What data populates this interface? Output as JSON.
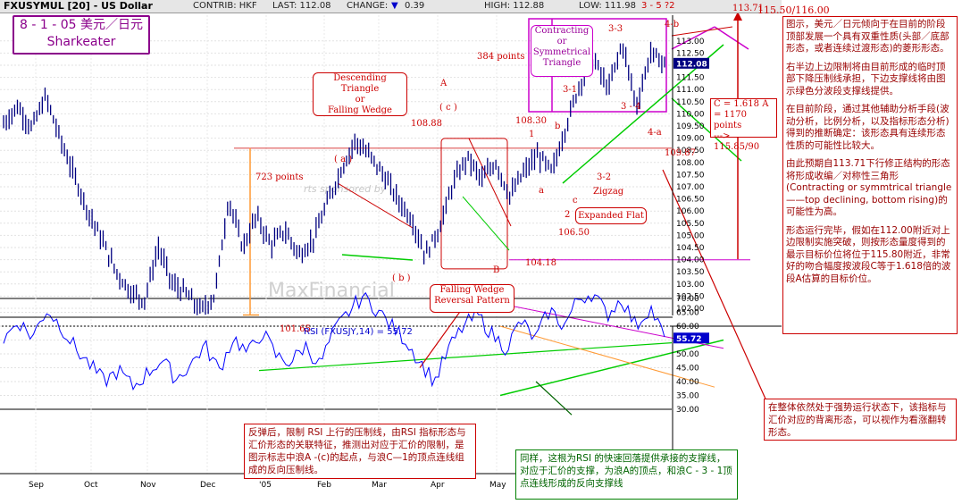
{
  "header": {
    "symbol": "FXUSYMUL [20] - US Dollar",
    "contrib": "CONTRIB: HKF",
    "last": "LAST: 112.08",
    "change": "CHANGE:",
    "change_icon": "down-triangle-icon",
    "change_value": "0.39",
    "high": "HIGH: 112.88",
    "low": "LOW: 111.98",
    "wave": "3 - 5 ?2"
  },
  "title_box": {
    "line1": "8 - 1 - 05 美元／日元",
    "line2": "Sharkeater"
  },
  "watermark": {
    "line1": "rts sponsored by",
    "line2": "MaxFinancial"
  },
  "price_labels": {
    "p11371": "113.71",
    "p11550": "115.50/116.00",
    "p10888": "108.88",
    "p10830": "108.30",
    "p10987": "109.87",
    "p10650": "106.50",
    "p10418": "104.18",
    "p10165": "101.65",
    "pts723": "723 points",
    "pts384": "384 points"
  },
  "wave_labels": {
    "A": "A",
    "c_paren": "( c )",
    "a_paren": "( a )",
    "b_paren": "( b )",
    "B": "B",
    "one": "1",
    "a": "a",
    "b": "b",
    "c": "c",
    "two": "2",
    "w31": "3-1",
    "w33": "3-3",
    "w34": "3 - 4",
    "w32": "3-2",
    "w4a": "4-a",
    "w4b": "4-b",
    "zigzag": "Zigzag"
  },
  "annotations": {
    "desc_triangle": [
      "Descending Triangle",
      "or",
      "Falling Wedge"
    ],
    "falling_wedge_rev": [
      "Falling Wedge",
      "Reversal Pattern"
    ],
    "contracting": [
      "Contracting",
      "or",
      "Symmetrical",
      "Triangle"
    ],
    "expanded_flat": "Expanded Flat",
    "c_calc": [
      "C = 1.618 A",
      "= 1170 points",
      "---> 115.85/90"
    ]
  },
  "price_axis": {
    "ticks": [
      "113.00",
      "112.50",
      "112.00",
      "111.50",
      "111.00",
      "110.50",
      "110.00",
      "109.50",
      "109.00",
      "108.50",
      "108.00",
      "107.50",
      "107.00",
      "106.50",
      "106.00",
      "105.50",
      "105.00",
      "104.50",
      "104.00",
      "103.50",
      "103.00",
      "102.50",
      "102.00"
    ],
    "last_tag": "112.08"
  },
  "rsi": {
    "label": "RSI (FXUSJY,14) = 55.72",
    "ticks": [
      "70.00",
      "65.00",
      "60.00",
      "55.00",
      "50.00",
      "45.00",
      "40.00",
      "35.00",
      "30.00"
    ],
    "last_tag": "55.72"
  },
  "x_axis": {
    "months": [
      "Sep",
      "Oct",
      "Nov",
      "Dec",
      "'05",
      "Feb",
      "Mar",
      "Apr",
      "May"
    ]
  },
  "notes": {
    "right": [
      "图示，美元／日元倾向于在目前的阶段顶部发展一个具有双重性质(头部／底部形态，或者连续过渡形态)的菱形形态。",
      "右半边上边限制将由目前形成的临时顶部下降压制线承担，下边支撑线将由图示绿色分波段支撑线提供。",
      "在目前阶段，通过其他辅助分析手段(波动分析，比例分析，以及指标形态分析)得到的推断确定：该形态具有连续形态性质的可能性比较大。",
      "由此预期自113.71下行修正结构的形态将形成收编／对称性三角形(Contracting or symmtrical triangle——top declining, bottom rising)的可能性为高。",
      "形态运行完毕，假如在112.00附近对上边限制实施突破，则按形态量度得到的最示目标价位将位于115.80附近，非常好的吻合幅度按波段C等于1.618倍的波段A估算的目标价位。"
    ],
    "bottom_right": "在整体依然处于强势运行状态下，该指标与汇价对应的背离形态，可以视作为看涨翻转形态。",
    "bottom_left": "反弹后，限制 RSI 上行的压制线，由RSI 指标形态与汇价形态的关联特征，推测出对应于汇价的限制，是图示标志中浪A -(c)的起点，与浪C—1的顶点连线组成的反向压制线。",
    "bottom_green": "同样，这根为RSI 的快速回落提供承接的支撑线，对应于汇价的支撑，为浪A的顶点，和浪C - 3 - 1顶点连线形成的反向支撑线"
  },
  "colors": {
    "price": "#000080",
    "rsi": "#0000ff",
    "red": "#cc0000",
    "magenta": "#cc00cc",
    "green": "#00cc00",
    "orange": "#ff9933",
    "text_red": "#990000"
  },
  "chart_data": [
    {
      "type": "line",
      "title": "FXUSYMUL [20] - US Dollar",
      "ylim": [
        102,
        113
      ],
      "x": [
        "Sep",
        "Oct",
        "Nov",
        "Dec",
        "'05",
        "Feb",
        "Mar",
        "Apr",
        "May"
      ],
      "points": [
        {
          "x": "Sep",
          "y": 109.6
        },
        {
          "x": "Sep",
          "y": 110.3
        },
        {
          "x": "Sep",
          "y": 109.4
        },
        {
          "x": "Oct",
          "y": 110.7
        },
        {
          "x": "Oct",
          "y": 109.0
        },
        {
          "x": "Oct",
          "y": 107.5
        },
        {
          "x": "Nov",
          "y": 106.0
        },
        {
          "x": "Nov",
          "y": 104.8
        },
        {
          "x": "Nov",
          "y": 103.5
        },
        {
          "x": "Dec",
          "y": 102.7
        },
        {
          "x": "Dec",
          "y": 102.3
        },
        {
          "x": "Dec",
          "y": 104.5
        },
        {
          "x": "Dec",
          "y": 103.0
        },
        {
          "x": "'05",
          "y": 102.6
        },
        {
          "x": "'05",
          "y": 101.9
        },
        {
          "x": "'05",
          "y": 102.5
        },
        {
          "x": "Feb",
          "y": 106.5
        },
        {
          "x": "Feb",
          "y": 104.5
        },
        {
          "x": "Feb",
          "y": 105.8
        },
        {
          "x": "Mar",
          "y": 104.6
        },
        {
          "x": "Mar",
          "y": 105.2
        },
        {
          "x": "Mar",
          "y": 104.2
        },
        {
          "x": "Mar",
          "y": 104.8
        },
        {
          "x": "Mar",
          "y": 106.3
        },
        {
          "x": "Apr",
          "y": 107.7
        },
        {
          "x": "Apr",
          "y": 108.88
        },
        {
          "x": "Apr",
          "y": 108.3
        },
        {
          "x": "Apr",
          "y": 107.5
        },
        {
          "x": "Apr",
          "y": 106.5
        },
        {
          "x": "Apr",
          "y": 105.7
        },
        {
          "x": "May",
          "y": 104.18
        },
        {
          "x": "May",
          "y": 105.3
        },
        {
          "x": "May",
          "y": 107.2
        },
        {
          "x": "May",
          "y": 108.2
        },
        {
          "x": "May",
          "y": 107.3
        },
        {
          "x": "May",
          "y": 108.0
        },
        {
          "x": "May",
          "y": 106.6
        },
        {
          "x": "May",
          "y": 107.6
        },
        {
          "x": "May",
          "y": 108.3
        },
        {
          "x": "May",
          "y": 107.6
        },
        {
          "x": "May",
          "y": 109.5
        },
        {
          "x": "May",
          "y": 111.3
        },
        {
          "x": "May",
          "y": 112.2
        },
        {
          "x": "May",
          "y": 111.0
        },
        {
          "x": "May",
          "y": 112.9
        },
        {
          "x": "May",
          "y": 110.3
        },
        {
          "x": "May",
          "y": 112.5
        },
        {
          "x": "May",
          "y": 112.08
        }
      ]
    },
    {
      "type": "line",
      "title": "RSI (FXUSJY,14) = 55.72",
      "ylim": [
        30,
        70
      ],
      "series": [
        {
          "name": "RSI (FXUSJY,14)",
          "values": [
            55,
            62,
            56,
            66,
            60,
            52,
            46,
            40,
            44,
            38,
            43,
            48,
            41,
            46,
            53,
            44,
            56,
            50,
            58,
            49,
            47,
            53,
            46,
            58,
            65,
            71,
            66,
            60,
            55,
            47,
            40,
            52,
            60,
            64,
            57,
            52,
            62,
            55,
            66,
            60,
            70,
            72,
            64,
            70,
            60,
            67,
            55.72
          ]
        }
      ]
    }
  ]
}
